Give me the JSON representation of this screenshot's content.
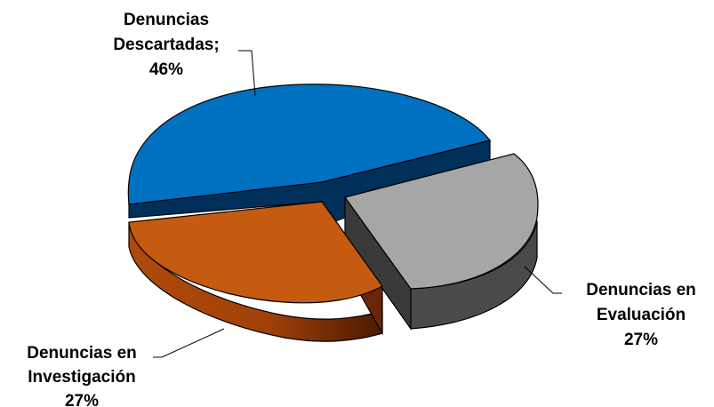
{
  "chart_data": {
    "type": "pie",
    "title": "",
    "slices": [
      {
        "label": "Denuncias Descartadas",
        "value": 46,
        "label_lines": [
          "Denuncias",
          "Descartadas;",
          "46%"
        ]
      },
      {
        "label": "Denuncias en Evaluación",
        "value": 27,
        "label_lines": [
          "Denuncias en",
          "Evaluación",
          "27%"
        ],
        "exploded": true
      },
      {
        "label": "Denuncias en Investigación",
        "value": 27,
        "label_lines": [
          "Denuncias en",
          "Investigación",
          "27%"
        ]
      }
    ],
    "unit": "%",
    "style": "3d-exploded",
    "colors": {
      "Denuncias Descartadas": "#0070C0",
      "Denuncias en Evaluación": "#A6A6A6",
      "Denuncias en Investigación": "#C55A11"
    },
    "legend": "none"
  }
}
